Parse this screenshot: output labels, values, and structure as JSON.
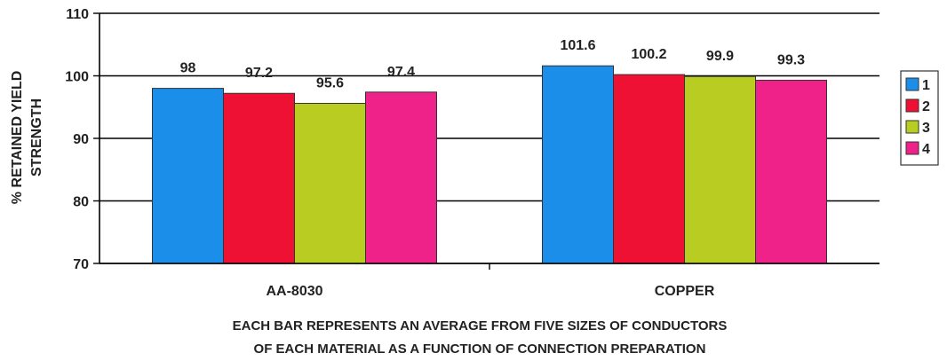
{
  "chart_data": {
    "type": "bar",
    "categories": [
      "AA-8030",
      "COPPER"
    ],
    "series": [
      {
        "name": "1",
        "values": [
          98,
          101.6
        ],
        "color": "#1a8ee8"
      },
      {
        "name": "2",
        "values": [
          97.2,
          100.2
        ],
        "color": "#ee1133"
      },
      {
        "name": "3",
        "values": [
          95.6,
          99.9
        ],
        "color": "#b9cc22"
      },
      {
        "name": "4",
        "values": [
          97.4,
          99.3
        ],
        "color": "#ee2288"
      }
    ],
    "data_labels": [
      [
        "98",
        "101.6"
      ],
      [
        "97.2",
        "100.2"
      ],
      [
        "95.6",
        "99.9"
      ],
      [
        "97.4",
        "99.3"
      ]
    ],
    "ylabel": [
      "% RETAINED YIELD",
      "STRENGTH"
    ],
    "ylim": [
      70,
      110
    ],
    "yticks": [
      70,
      80,
      90,
      100,
      110
    ],
    "grid": true,
    "legend": "right",
    "note": [
      "EACH BAR REPRESENTS AN AVERAGE FROM FIVE SIZES OF CONDUCTORS",
      "OF EACH MATERIAL AS A FUNCTION OF CONNECTION PREPARATION"
    ]
  }
}
